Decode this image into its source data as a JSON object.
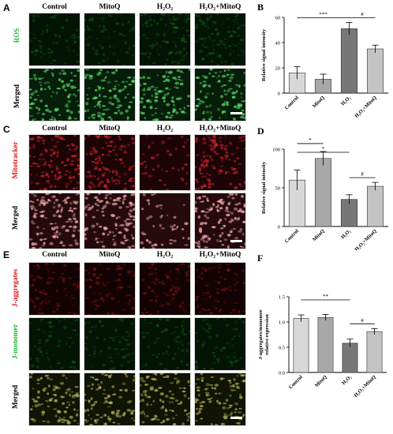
{
  "panels": {
    "A": {
      "letter": "A",
      "columns": [
        "Control",
        "MitoQ",
        "H₂O₂",
        "H₂O₂+MitoQ"
      ],
      "rows": [
        {
          "label": "ROS",
          "color": "#1fb63a",
          "channel": "green-dim"
        },
        {
          "label": "Merged",
          "color": "#000000",
          "channel": "green-bright"
        }
      ]
    },
    "C": {
      "letter": "C",
      "columns": [
        "Control",
        "MitoQ",
        "H₂O₂",
        "H₂O₂+MitoQ"
      ],
      "rows": [
        {
          "label": "Mitotracker",
          "color": "#d9191c",
          "channel": "red"
        },
        {
          "label": "Merged",
          "color": "#000000",
          "channel": "pink"
        }
      ]
    },
    "E": {
      "letter": "E",
      "columns": [
        "Control",
        "MitoQ",
        "H₂O₂",
        "H₂O₂+MitoQ"
      ],
      "rows": [
        {
          "label": "J-aggregates",
          "color": "#d9191c",
          "channel": "red-dim"
        },
        {
          "label": "J-monomer",
          "color": "#1fb63a",
          "channel": "green-dim"
        },
        {
          "label": "Merged",
          "color": "#000000",
          "channel": "yellow"
        }
      ]
    }
  },
  "chart_data": [
    {
      "panel": "B",
      "type": "bar",
      "ylabel": "Relative signal intensity",
      "categories": [
        "Control",
        "MitoQ",
        "H₂O₂",
        "H₂O₂+MitoQ"
      ],
      "values": [
        16,
        11,
        51,
        35
      ],
      "errors": [
        5,
        4,
        5,
        3
      ],
      "bar_colors": [
        "#d8d8d8",
        "#a8a8a8",
        "#777777",
        "#c4c4c4"
      ],
      "ylim": [
        0,
        60
      ],
      "yticks": [
        "0",
        "20",
        "40",
        "60"
      ],
      "annotations": [
        {
          "from": 0,
          "to": 2,
          "label": "***"
        },
        {
          "from": 2,
          "to": 3,
          "label": "#"
        }
      ]
    },
    {
      "panel": "D",
      "type": "bar",
      "ylabel": "Relative signal intensity",
      "categories": [
        "Control",
        "MitoQ",
        "H₂O₂",
        "H₂O₂+MitoQ"
      ],
      "values": [
        60,
        88,
        35,
        52
      ],
      "errors": [
        13,
        9,
        6,
        5
      ],
      "bar_colors": [
        "#d8d8d8",
        "#a8a8a8",
        "#777777",
        "#c4c4c4"
      ],
      "ylim": [
        0,
        100
      ],
      "yticks": [
        "0",
        "50",
        "100"
      ],
      "annotations": [
        {
          "from": 0,
          "to": 1,
          "label": "*"
        },
        {
          "from": 0,
          "to": 2,
          "label": "*"
        },
        {
          "from": 2,
          "to": 3,
          "label": "#"
        }
      ]
    },
    {
      "panel": "F",
      "type": "bar",
      "ylabel": "J-aggregates/monomer relative expression",
      "categories": [
        "Control",
        "MitoQ",
        "H₂O₂",
        "H₂O₂+MitoQ"
      ],
      "values": [
        1.07,
        1.09,
        0.58,
        0.81
      ],
      "errors": [
        0.07,
        0.06,
        0.08,
        0.06
      ],
      "bar_colors": [
        "#d8d8d8",
        "#a8a8a8",
        "#777777",
        "#c4c4c4"
      ],
      "ylim": [
        0,
        1.5
      ],
      "yticks": [
        "0.0",
        "0.5",
        "1.0",
        "1.5"
      ],
      "annotations": [
        {
          "from": 0,
          "to": 2,
          "label": "**"
        },
        {
          "from": 2,
          "to": 3,
          "label": "#"
        }
      ]
    }
  ]
}
